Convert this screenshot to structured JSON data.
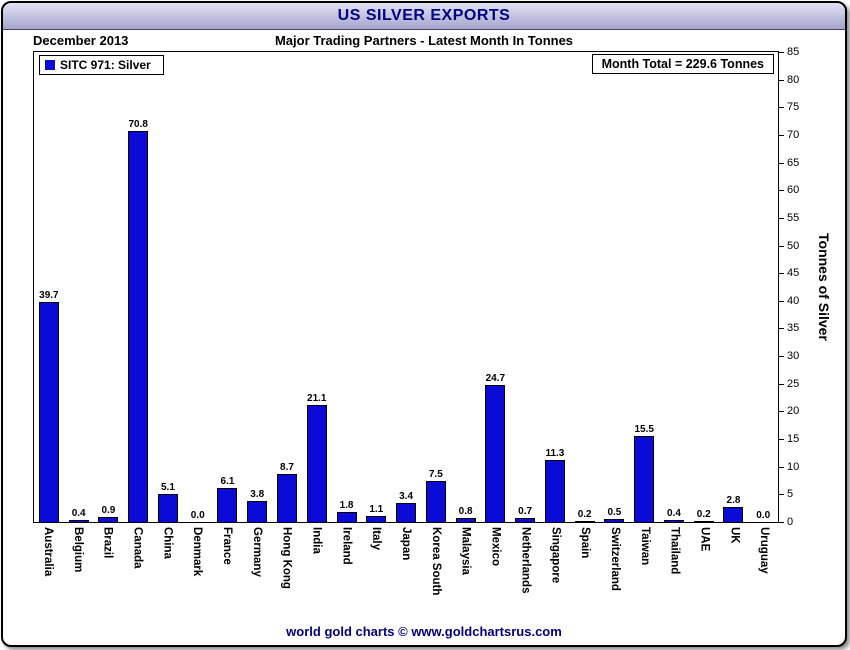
{
  "header": {
    "title": "US SILVER EXPORTS"
  },
  "titles": {
    "date_label": "December 2013",
    "subtitle": "Major Trading Partners - Latest Month In Tonnes"
  },
  "legend": {
    "label": "SITC 971: Silver"
  },
  "totals": {
    "month_total_label": "Month Total = 229.6 Tonnes"
  },
  "footer": {
    "credit": "world gold charts © www.goldchartsrus.com"
  },
  "chart_data": {
    "type": "bar",
    "title": "US SILVER EXPORTS",
    "subtitle": "Major Trading Partners - Latest Month In Tonnes",
    "period": "December 2013",
    "series_name": "SITC 971: Silver",
    "month_total_tonnes": 229.6,
    "unit": "Tonnes",
    "categories": [
      "Australia",
      "Belgium",
      "Brazil",
      "Canada",
      "China",
      "Denmark",
      "France",
      "Germany",
      "Hong Kong",
      "India",
      "Ireland",
      "Italy",
      "Japan",
      "Korea South",
      "Malaysia",
      "Mexico",
      "Netherlands",
      "Singapore",
      "Spain",
      "Switzerland",
      "Taiwan",
      "Thailand",
      "UAE",
      "UK",
      "Uruguay"
    ],
    "values": [
      39.7,
      0.4,
      0.9,
      70.8,
      5.1,
      0.0,
      6.1,
      3.8,
      8.7,
      21.1,
      1.8,
      1.1,
      3.4,
      7.5,
      0.8,
      24.7,
      0.7,
      11.3,
      0.2,
      0.5,
      15.5,
      0.4,
      0.2,
      2.8,
      0.0
    ],
    "ylabel": "Tonnes of Silver",
    "ylim": [
      0,
      85
    ],
    "ytick_step": 5,
    "bar_color": "#0b0bd8",
    "grid": false,
    "legend_position": "top-left"
  }
}
